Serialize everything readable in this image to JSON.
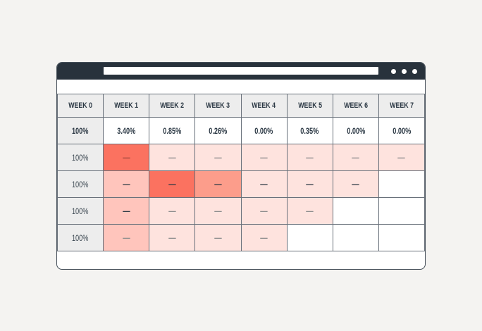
{
  "window": {
    "titlebar": {
      "color": "#28323c",
      "address_value": "",
      "menu_dots": 3
    }
  },
  "colors": {
    "page_background": "#f4f3f1",
    "header_bg": "#ededed",
    "grid_line": "#68707a",
    "text_dark": "#2b3844",
    "heat_strong": "#fb7260",
    "heat_medium": "#fc9d8b",
    "heat_soft": "#ffc5bc",
    "heat_light": "#fee3de",
    "dash_red": "#a1493e",
    "dash_dark": "#2e3a44",
    "dash_gray": "#8d8d8d"
  },
  "table": {
    "headers": [
      "WEEK 0",
      "WEEK 1",
      "WEEK 2",
      "WEEK 3",
      "WEEK 4",
      "WEEK 5",
      "WEEK 6",
      "WEEK 7"
    ],
    "summary_row": [
      "100%",
      "3.40%",
      "0.85%",
      "0.26%",
      "0.00%",
      "0.35%",
      "0.00%",
      "0.00%"
    ],
    "rows": [
      {
        "week0": "100%",
        "cells": [
          {
            "text": "—",
            "heat": "strong",
            "dash": "red"
          },
          {
            "text": "—",
            "heat": "light",
            "dash": "gray"
          },
          {
            "text": "—",
            "heat": "light",
            "dash": "gray"
          },
          {
            "text": "—",
            "heat": "light",
            "dash": "gray"
          },
          {
            "text": "—",
            "heat": "light",
            "dash": "gray"
          },
          {
            "text": "—",
            "heat": "light",
            "dash": "gray"
          },
          {
            "text": "—",
            "heat": "light",
            "dash": "gray"
          }
        ]
      },
      {
        "week0": "100%",
        "cells": [
          {
            "text": "—",
            "heat": "soft",
            "dash": "dark"
          },
          {
            "text": "—",
            "heat": "strong",
            "dash": "dark"
          },
          {
            "text": "—",
            "heat": "medium",
            "dash": "dark"
          },
          {
            "text": "—",
            "heat": "light",
            "dash": "dark"
          },
          {
            "text": "—",
            "heat": "light",
            "dash": "dark"
          },
          {
            "text": "—",
            "heat": "light",
            "dash": "dark"
          },
          {
            "text": "",
            "heat": "none",
            "dash": "gray"
          }
        ]
      },
      {
        "week0": "100%",
        "cells": [
          {
            "text": "—",
            "heat": "soft",
            "dash": "dark"
          },
          {
            "text": "—",
            "heat": "light",
            "dash": "gray"
          },
          {
            "text": "—",
            "heat": "light",
            "dash": "gray"
          },
          {
            "text": "—",
            "heat": "light",
            "dash": "gray"
          },
          {
            "text": "—",
            "heat": "light",
            "dash": "gray"
          },
          {
            "text": "",
            "heat": "none",
            "dash": "gray"
          },
          {
            "text": "",
            "heat": "none",
            "dash": "gray"
          }
        ]
      },
      {
        "week0": "100%",
        "cells": [
          {
            "text": "—",
            "heat": "soft",
            "dash": "gray"
          },
          {
            "text": "—",
            "heat": "light",
            "dash": "gray"
          },
          {
            "text": "—",
            "heat": "light",
            "dash": "gray"
          },
          {
            "text": "—",
            "heat": "light",
            "dash": "gray"
          },
          {
            "text": "",
            "heat": "none",
            "dash": "gray"
          },
          {
            "text": "",
            "heat": "none",
            "dash": "gray"
          },
          {
            "text": "",
            "heat": "none",
            "dash": "gray"
          }
        ]
      }
    ]
  }
}
